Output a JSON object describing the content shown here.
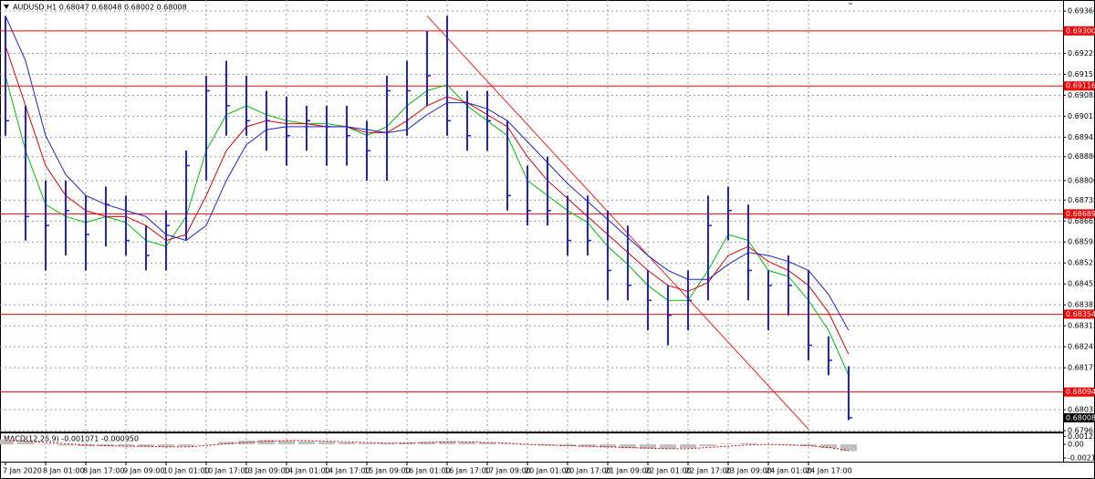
{
  "chart_data": [
    {
      "type": "ohlc",
      "title": "AUDUSD,H1  0.68047 0.68048 0.68002 0.68008",
      "categories": [
        "7 Jan 2020",
        null,
        "8 Jan 01:00",
        null,
        "8 Jan 17:00",
        null,
        "9 Jan 09:00",
        null,
        "10 Jan 01:00",
        null,
        "10 Jan 17:00",
        null,
        "13 Jan 09:00",
        null,
        "14 Jan 01:00",
        null,
        "14 Jan 17:00",
        null,
        "15 Jan 09:00",
        null,
        "16 Jan 01:00",
        null,
        "16 Jan 17:00",
        null,
        "17 Jan 09:00",
        null,
        "20 Jan 01:00",
        null,
        "20 Jan 17:00",
        null,
        "21 Jan 09:00",
        null,
        "22 Jan 01:00",
        null,
        "22 Jan 17:00",
        null,
        "23 Jan 09:00",
        null,
        "24 Jan 01:00",
        null,
        "24 Jan 17:00",
        null,
        null
      ],
      "high": [
        0.6935,
        0.6905,
        0.688,
        0.688,
        0.6875,
        0.6878,
        0.6875,
        0.6865,
        0.687,
        0.689,
        0.6915,
        0.692,
        0.6915,
        0.691,
        0.6908,
        0.6905,
        0.6905,
        0.6905,
        0.69,
        0.6915,
        0.692,
        0.693,
        0.6935,
        0.691,
        0.691,
        0.69,
        0.6885,
        0.6888,
        0.6875,
        0.6875,
        0.687,
        0.6865,
        0.685,
        0.6845,
        0.685,
        0.6875,
        0.6878,
        0.6872,
        0.685,
        0.6855,
        0.685,
        0.6828,
        0.6818
      ],
      "low": [
        0.6895,
        0.686,
        0.685,
        0.6855,
        0.685,
        0.6858,
        0.6855,
        0.685,
        0.685,
        0.686,
        0.688,
        0.6895,
        0.6895,
        0.689,
        0.6885,
        0.689,
        0.6885,
        0.6885,
        0.688,
        0.688,
        0.6895,
        0.6905,
        0.6895,
        0.689,
        0.689,
        0.687,
        0.6865,
        0.6865,
        0.6855,
        0.6855,
        0.684,
        0.684,
        0.683,
        0.6825,
        0.683,
        0.684,
        0.686,
        0.684,
        0.683,
        0.6835,
        0.682,
        0.6815,
        0.68
      ],
      "close": [
        0.69,
        0.6868,
        0.6865,
        0.687,
        0.6862,
        0.6872,
        0.686,
        0.6855,
        0.6865,
        0.6885,
        0.691,
        0.6905,
        0.69,
        0.69,
        0.6895,
        0.69,
        0.6898,
        0.6895,
        0.689,
        0.691,
        0.691,
        0.6915,
        0.69,
        0.6895,
        0.69,
        0.6875,
        0.687,
        0.687,
        0.686,
        0.686,
        0.685,
        0.6845,
        0.684,
        0.6835,
        0.684,
        0.6865,
        0.687,
        0.685,
        0.6845,
        0.6845,
        0.6825,
        0.682,
        0.68008
      ],
      "color": "#1f1fe0",
      "lines": [
        {
          "color": "#00c000",
          "values": [
            0.6915,
            0.689,
            0.6872,
            0.6868,
            0.6866,
            0.6868,
            0.6866,
            0.686,
            0.6858,
            0.6868,
            0.689,
            0.6902,
            0.6905,
            0.6902,
            0.69,
            0.6899,
            0.6899,
            0.6898,
            0.6895,
            0.6898,
            0.6905,
            0.691,
            0.6912,
            0.6905,
            0.69,
            0.6895,
            0.688,
            0.6875,
            0.687,
            0.6866,
            0.6858,
            0.6852,
            0.6845,
            0.684,
            0.684,
            0.685,
            0.6862,
            0.686,
            0.685,
            0.6848,
            0.684,
            0.683,
            0.6815
          ]
        },
        {
          "color": "#e00000",
          "values": [
            0.6925,
            0.6905,
            0.6885,
            0.6875,
            0.687,
            0.6868,
            0.6868,
            0.6865,
            0.686,
            0.6862,
            0.6875,
            0.689,
            0.6898,
            0.69,
            0.6899,
            0.6899,
            0.6898,
            0.6898,
            0.6896,
            0.6896,
            0.69,
            0.6905,
            0.6908,
            0.6906,
            0.6902,
            0.6898,
            0.6888,
            0.688,
            0.6874,
            0.6868,
            0.6862,
            0.6856,
            0.685,
            0.6845,
            0.6843,
            0.6846,
            0.6855,
            0.6858,
            0.6853,
            0.685,
            0.6845,
            0.6836,
            0.6822
          ]
        },
        {
          "color": "#2020c8",
          "values": [
            0.6935,
            0.692,
            0.6895,
            0.6882,
            0.6875,
            0.6872,
            0.687,
            0.6868,
            0.6862,
            0.686,
            0.6865,
            0.688,
            0.6892,
            0.6897,
            0.6898,
            0.6898,
            0.6898,
            0.6898,
            0.6897,
            0.6896,
            0.6897,
            0.6902,
            0.6906,
            0.6906,
            0.6904,
            0.69,
            0.6893,
            0.6886,
            0.6879,
            0.6873,
            0.6867,
            0.6861,
            0.6855,
            0.685,
            0.6847,
            0.6847,
            0.6852,
            0.6856,
            0.6855,
            0.6853,
            0.685,
            0.6842,
            0.683
          ]
        }
      ],
      "levels": [
        {
          "value": 0.693,
          "label": "0.69300"
        },
        {
          "value": 0.69116,
          "label": "0.69116"
        },
        {
          "value": 0.68689,
          "label": "0.68689"
        },
        {
          "value": 0.68354,
          "label": "0.68354"
        },
        {
          "value": 0.68094,
          "label": "0.68094"
        }
      ],
      "level_color": "#ff0000",
      "last_price": {
        "value": 0.68008,
        "label": "0.68008"
      },
      "trendline": {
        "from": [
          21,
          0.6935
        ],
        "to": [
          40,
          0.6797
        ],
        "color": "#ff2020"
      },
      "ylim": [
        0.67962,
        0.69397
      ],
      "yticks": [
        0.69366,
        0.69225,
        0.69155,
        0.69085,
        0.69015,
        0.68945,
        {
          "value": 0.6888,
          "label": "0.68880"
        },
        {
          "value": 0.688,
          "label": "0.68800"
        },
        0.68735,
        0.68665,
        0.68595,
        0.68525,
        0.68455,
        0.68385,
        0.68315,
        0.68245,
        0.68175,
        0.68035,
        0.67965
      ],
      "grid": true
    },
    {
      "type": "macd",
      "title": "MACD(12,26,9) -0.001071 -0.000950",
      "values": [
        0.0008,
        0.0004,
        0,
        -0.0002,
        -0.0003,
        -0.0003,
        -0.0003,
        -0.0004,
        -0.0004,
        -0.0003,
        0,
        0.0004,
        0.0006,
        0.0007,
        0.0006,
        0.0005,
        0.0004,
        0.0003,
        0.0002,
        0.0002,
        0.0003,
        0.0004,
        0.0005,
        0.0004,
        0.0003,
        0.0001,
        -0.0001,
        -0.0002,
        -0.0003,
        -0.0004,
        -0.0005,
        -0.0006,
        -0.0007,
        -0.0007,
        -0.0006,
        -0.0003,
        0.0001,
        0.0002,
        0,
        -0.0001,
        -0.0003,
        -0.0006,
        -0.001071
      ],
      "signal": [
        0.0006,
        0.0005,
        0.0003,
        0.0001,
        -0.0001,
        -0.0002,
        -0.0003,
        -0.0003,
        -0.0004,
        -0.0004,
        -0.0002,
        0.0001,
        0.0003,
        0.0005,
        0.0006,
        0.0006,
        0.0005,
        0.0004,
        0.0003,
        0.0002,
        0.0002,
        0.0003,
        0.0004,
        0.0004,
        0.0003,
        0.0002,
        0,
        -0.0001,
        -0.0002,
        -0.0003,
        -0.0004,
        -0.0005,
        -0.0006,
        -0.0007,
        -0.0007,
        -0.0005,
        -0.0003,
        -0.0001,
        0,
        -0.0001,
        -0.0002,
        -0.0005,
        -0.00095
      ],
      "color": "#c0c0c0",
      "signal_color": "#e00000",
      "ylim": [
        -0.0026,
        0.0016
      ],
      "yticks": [
        0.001254,
        {
          "value": 0,
          "label": "0.00"
        },
        -0.00216
      ]
    }
  ]
}
